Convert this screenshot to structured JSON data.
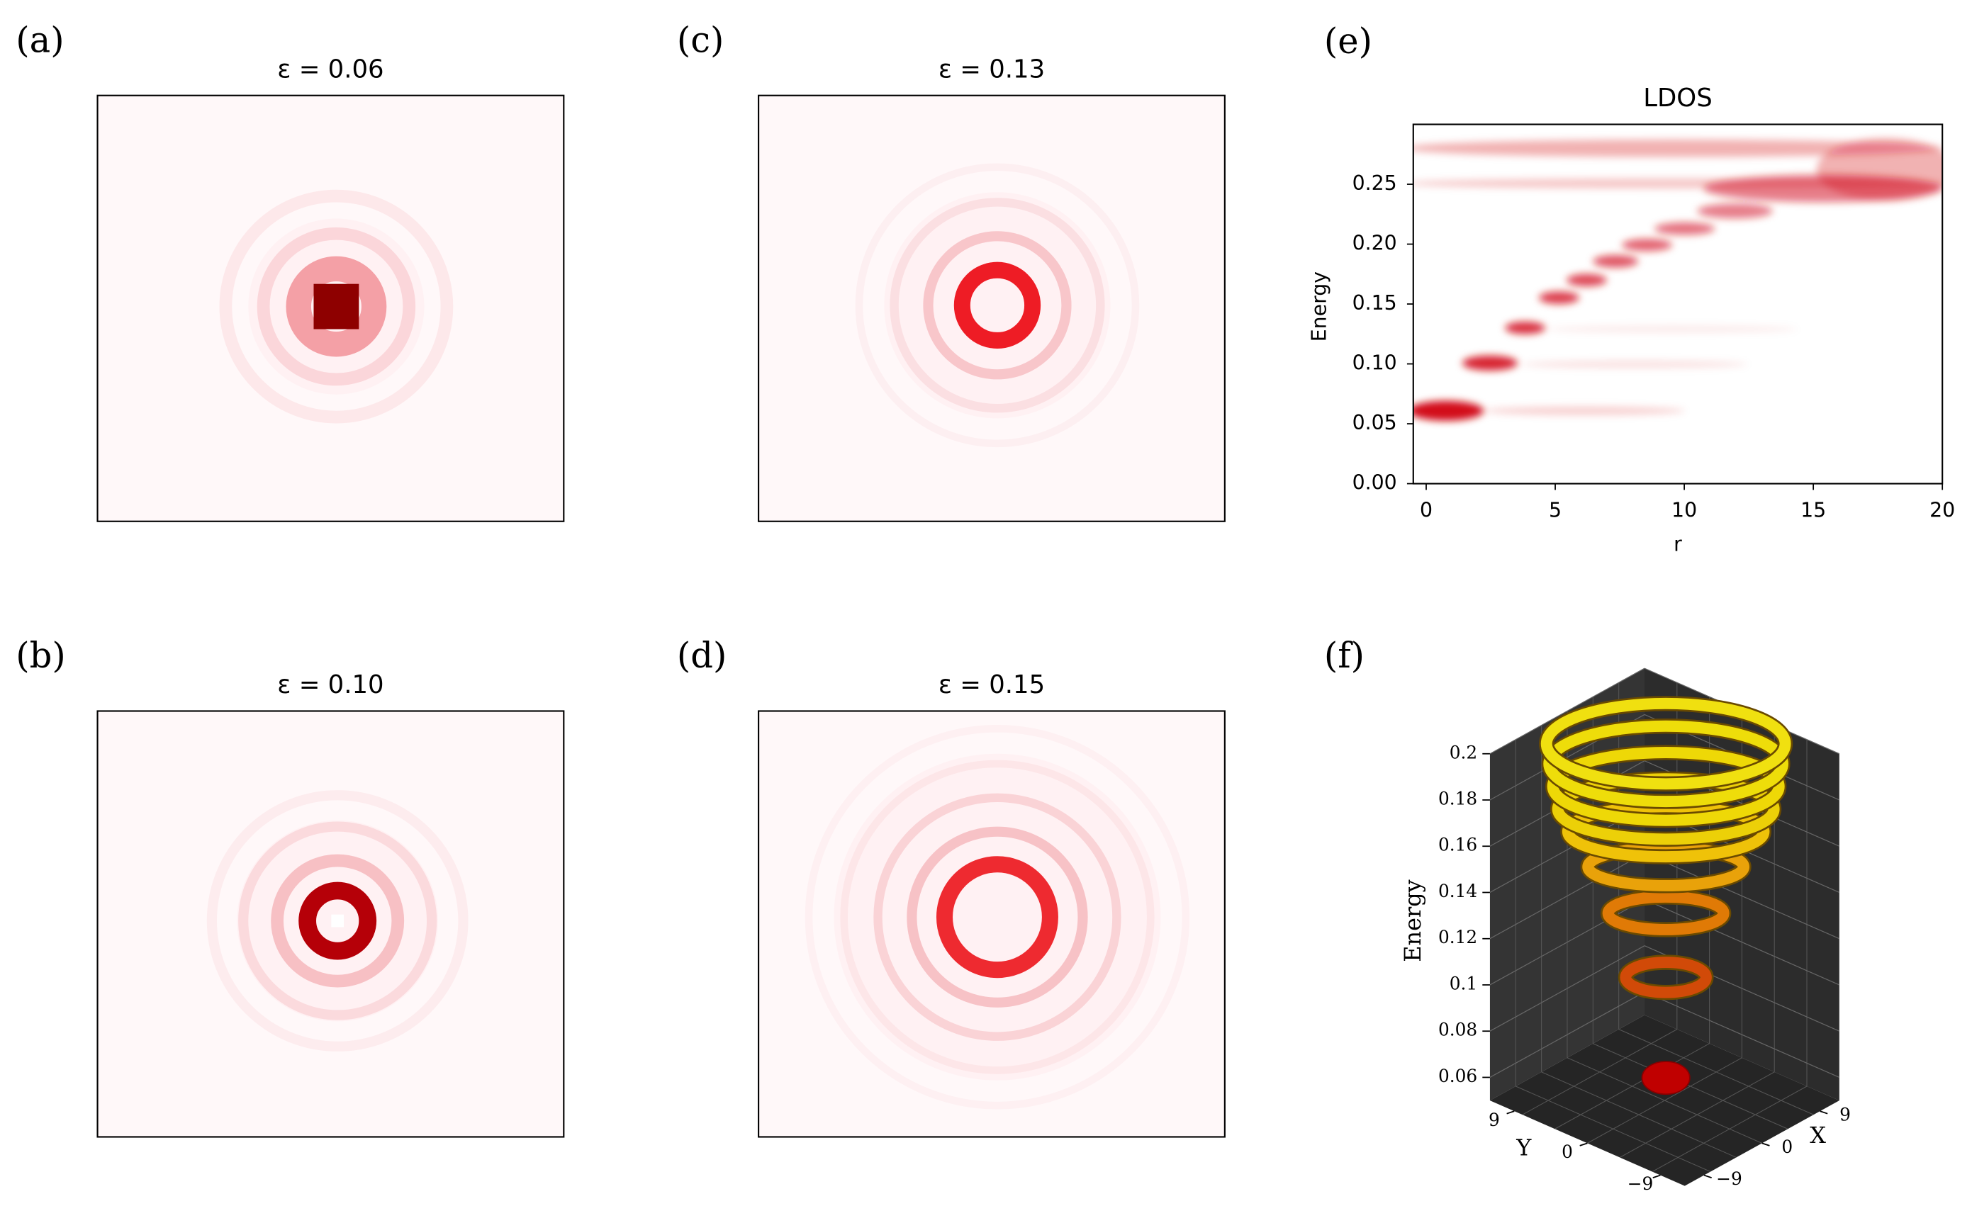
{
  "chart_data": [
    {
      "type": "image",
      "panel": "(a)",
      "title": "ε = 0.06"
    },
    {
      "type": "image",
      "panel": "(b)",
      "title": "ε = 0.10"
    },
    {
      "type": "image",
      "panel": "(c)",
      "title": "ε = 0.13"
    },
    {
      "type": "image",
      "panel": "(d)",
      "title": "ε = 0.15"
    },
    {
      "type": "heatmap",
      "panel": "(e)",
      "title": "LDOS",
      "x_label": "r",
      "y_label": "Energy",
      "xlim": [
        -0.5,
        20
      ],
      "ylim": [
        0,
        0.3
      ],
      "xticks": [
        0,
        5,
        10,
        15,
        20
      ],
      "yticks": [
        {
          "value": 0,
          "label": "0.00"
        },
        {
          "value": 0.05,
          "label": "0.05"
        },
        {
          "value": 0.1,
          "label": "0.10"
        },
        {
          "value": 0.15,
          "label": "0.15"
        },
        {
          "value": 0.2,
          "label": "0.20"
        },
        {
          "value": 0.25,
          "label": "0.25"
        }
      ]
    },
    {
      "type": "surface3d",
      "panel": "(f)",
      "x_label": "X",
      "y_label": "Y",
      "z_label": "Energy",
      "xlim": [
        -12,
        12
      ],
      "ylim": [
        -12,
        12
      ],
      "zlim": [
        0.05,
        0.2
      ],
      "xticks": [
        {
          "value": -9,
          "label": "−9"
        },
        0,
        9
      ],
      "yticks": [
        9,
        0,
        {
          "value": -9,
          "label": "−9"
        }
      ],
      "zticks": [
        0.06,
        0.08,
        0.1,
        0.12,
        0.14,
        0.16,
        0.18,
        0.2
      ]
    }
  ]
}
